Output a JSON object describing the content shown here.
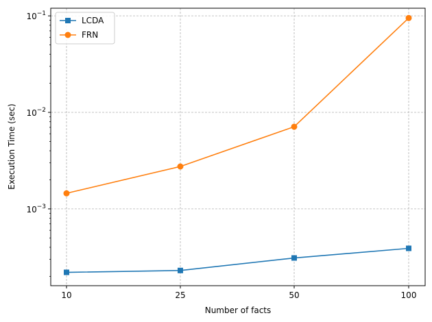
{
  "chart_data": {
    "type": "line",
    "xlabel": "Number of facts",
    "ylabel": "Execution Time (sec)",
    "x_categories": [
      "10",
      "25",
      "50",
      "100"
    ],
    "y_scale": "log",
    "ylim": [
      0.00016,
      0.12
    ],
    "y_ticks": [
      {
        "value": 0.001,
        "base": "10",
        "exp": "−3"
      },
      {
        "value": 0.01,
        "base": "10",
        "exp": "−2"
      },
      {
        "value": 0.1,
        "base": "10",
        "exp": "−1"
      }
    ],
    "grid": true,
    "legend_position": "top-left",
    "series": [
      {
        "name": "LCDA",
        "color": "#1f77b4",
        "marker": "square",
        "values": [
          0.00022,
          0.00023,
          0.00031,
          0.00039
        ]
      },
      {
        "name": "FRN",
        "color": "#ff7f0e",
        "marker": "circle",
        "values": [
          0.00145,
          0.00275,
          0.0071,
          0.095
        ]
      }
    ]
  }
}
